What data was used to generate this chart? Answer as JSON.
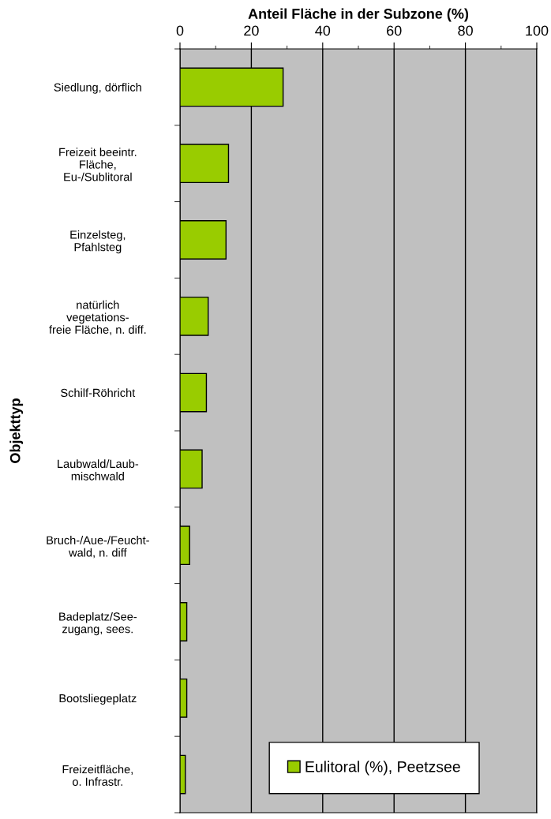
{
  "chart_data": {
    "type": "bar",
    "orientation": "horizontal",
    "xlabel": "Anteil Fläche in der Subzone (%)",
    "ylabel": "Objekttyp",
    "categories": [
      "Siedlung, dörflich",
      "Freizeit beeintr.\nFläche,\nEu-/Sublitoral",
      "Einzelsteg,\nPfahlsteg",
      "natürlich\nvegetations-\nfreie Fläche, n. diff.",
      "Schilf-Röhricht",
      "Laubwald/Laub-\nmischwald",
      "Bruch-/Aue-/Feucht-\nwald, n. diff",
      "Badeplatz/See-\nzugang, sees.",
      "Bootsliegeplatz",
      "Freizeitfläche,\no. Infrastr."
    ],
    "series": [
      {
        "name": "Eulitoral (%), Peetzsee",
        "color": "#99cc00",
        "values": [
          28.9,
          13.6,
          12.9,
          7.9,
          7.4,
          6.2,
          2.7,
          1.9,
          1.9,
          1.5
        ]
      }
    ],
    "xlim": [
      0,
      100
    ],
    "xticks": [
      0,
      {
        "value": 10,
        "label": null
      },
      20,
      {
        "value": 30,
        "label": null
      },
      40,
      {
        "value": 50,
        "label": null
      },
      60,
      {
        "value": 70,
        "label": null
      },
      80,
      {
        "value": 90,
        "label": null
      },
      100
    ],
    "grid": "x",
    "legend": "bottom right"
  }
}
